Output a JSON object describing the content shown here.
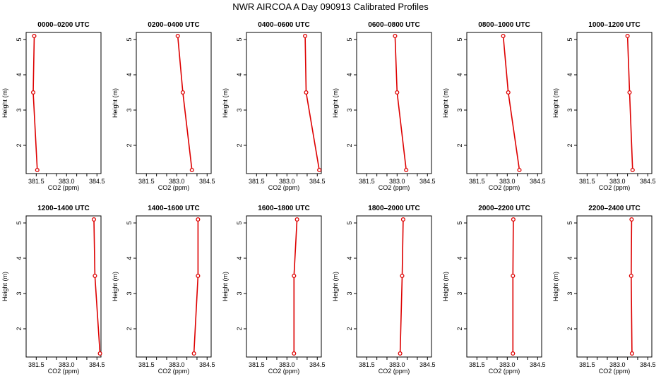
{
  "figure": {
    "title": "NWR AIRCOA A  Day 090913  Calibrated Profiles",
    "line_color": "#dd0000"
  },
  "chart_data": {
    "type": "line",
    "xlabel": "CO2 (ppm)",
    "ylabel": "Height (m)",
    "xlim": [
      381.0,
      384.7
    ],
    "ylim": [
      1.2,
      5.2
    ],
    "xticks": [
      381.5,
      382.0,
      382.5,
      383.0,
      383.5,
      384.0,
      384.5
    ],
    "xtick_labels": [
      "381.5",
      "",
      "",
      "383.0",
      "",
      "",
      "384.5"
    ],
    "yticks": [
      2,
      3,
      4,
      5
    ],
    "ytick_labels": [
      "2",
      "3",
      "4",
      "5"
    ],
    "heights": [
      5.1,
      3.5,
      1.3
    ],
    "panels": [
      {
        "title": "0000–0200 UTC",
        "x": [
          381.4,
          381.35,
          381.55
        ]
      },
      {
        "title": "0200–0400 UTC",
        "x": [
          383.05,
          383.3,
          383.75
        ]
      },
      {
        "title": "0400–0600 UTC",
        "x": [
          383.9,
          383.95,
          384.6
        ]
      },
      {
        "title": "0600–0800 UTC",
        "x": [
          382.9,
          383.0,
          383.45
        ]
      },
      {
        "title": "0800–1000 UTC",
        "x": [
          382.8,
          383.05,
          383.6
        ]
      },
      {
        "title": "1000–1200 UTC",
        "x": [
          383.5,
          383.6,
          383.75
        ]
      },
      {
        "title": "1200–1400 UTC",
        "x": [
          384.35,
          384.4,
          384.65
        ]
      },
      {
        "title": "1400–1600 UTC",
        "x": [
          384.05,
          384.05,
          383.85
        ]
      },
      {
        "title": "1600–1800 UTC",
        "x": [
          383.5,
          383.35,
          383.35
        ]
      },
      {
        "title": "1800–2000 UTC",
        "x": [
          383.3,
          383.25,
          383.15
        ]
      },
      {
        "title": "2000–2200 UTC",
        "x": [
          383.3,
          383.28,
          383.28
        ]
      },
      {
        "title": "2200–2400 UTC",
        "x": [
          383.7,
          383.68,
          383.72
        ]
      }
    ]
  }
}
